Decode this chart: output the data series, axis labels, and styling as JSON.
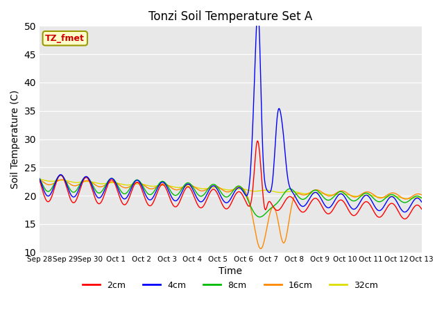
{
  "title": "Tonzi Soil Temperature Set A",
  "xlabel": "Time",
  "ylabel": "Soil Temperature (C)",
  "ylim": [
    10,
    50
  ],
  "yticks": [
    10,
    15,
    20,
    25,
    30,
    35,
    40,
    45,
    50
  ],
  "bg_color": "#e8e8e8",
  "legend_label": "TZ_fmet",
  "legend_box_color": "#ffffcc",
  "legend_box_edge_color": "#999900",
  "legend_text_color": "#cc0000",
  "series_colors": {
    "2cm": "#ff0000",
    "4cm": "#0000ff",
    "8cm": "#00bb00",
    "16cm": "#ff8800",
    "32cm": "#dddd00"
  },
  "series_linewidth": 1.0,
  "x_tick_labels": [
    "Sep 28",
    "Sep 29",
    "Sep 30",
    "Oct 1",
    "Oct 2",
    "Oct 3",
    "Oct 4",
    "Oct 5",
    "Oct 6",
    "Oct 7",
    "Oct 8",
    "Oct 9",
    "Oct 10",
    "Oct 11",
    "Oct 12",
    "Oct 13"
  ]
}
